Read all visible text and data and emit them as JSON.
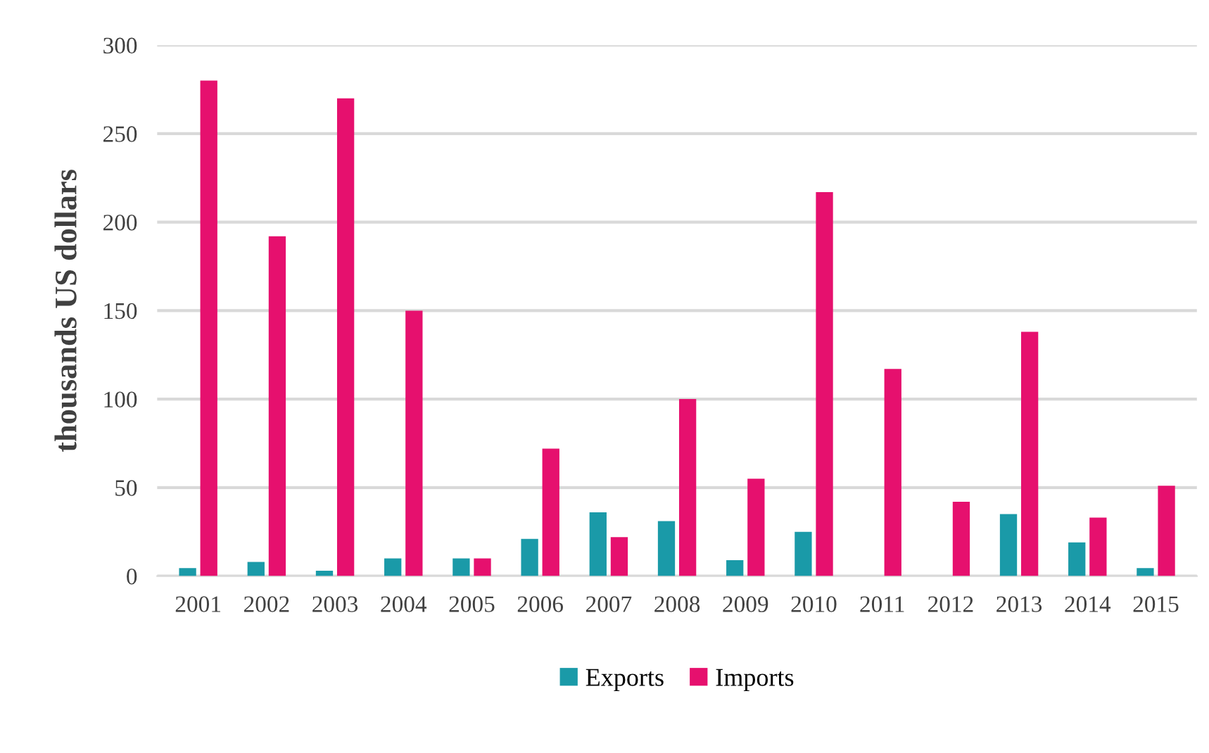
{
  "chart_data": {
    "type": "bar",
    "ylabel": "thousands US dollars",
    "categories": [
      "2001",
      "2002",
      "2003",
      "2004",
      "2005",
      "2006",
      "2007",
      "2008",
      "2009",
      "2010",
      "2011",
      "2012",
      "2013",
      "2014",
      "2015"
    ],
    "series": [
      {
        "name": "Exports",
        "color": "#1a9aa8",
        "values": [
          4.5,
          8,
          3,
          10,
          10,
          21,
          36,
          31,
          9,
          25,
          0,
          0,
          35,
          19,
          4.5
        ]
      },
      {
        "name": "Imports",
        "color": "#e6106e",
        "values": [
          280,
          192,
          270,
          150,
          10,
          72,
          22,
          100,
          55,
          217,
          117,
          42,
          138,
          33,
          51
        ]
      }
    ],
    "ylim": [
      0,
      300
    ],
    "yticks": [
      0,
      50,
      100,
      150,
      200,
      250,
      300
    ],
    "grid": "y",
    "legend": "bottom"
  }
}
